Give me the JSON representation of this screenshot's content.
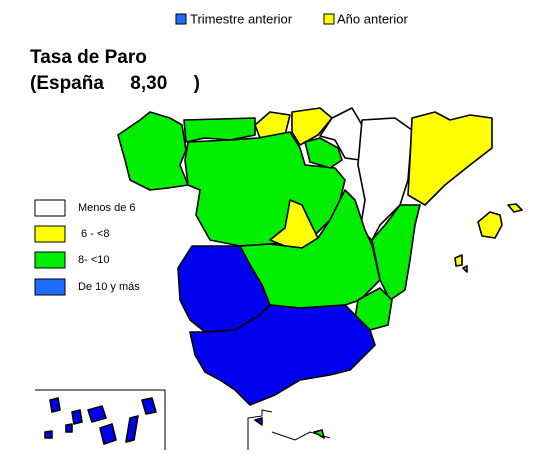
{
  "toggles": [
    {
      "label": "Trimestre anterior"
    },
    {
      "label": "Año anterior"
    }
  ],
  "title": "Tasa de Paro",
  "subtitle": "(España     8,30     )",
  "legend": [
    {
      "label": "Menos de 6"
    },
    {
      "label": " 6 - <8"
    },
    {
      "label": "8- <10"
    },
    {
      "label": "De 10 y más"
    }
  ]
}
